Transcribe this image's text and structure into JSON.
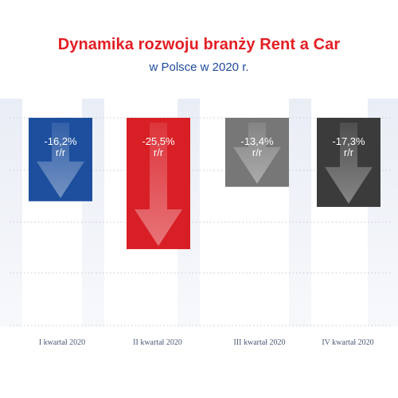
{
  "title": "Dynamika rozwoju branży Rent a Car",
  "subtitle": "w Polsce w 2020 r.",
  "colors": {
    "title": "#e31e24",
    "subtitle": "#1e4a9c",
    "stripe": "#eef1f7",
    "gridline": "#c2cad8"
  },
  "chart_data": {
    "type": "bar",
    "title": "Dynamika rozwoju branży Rent a Car",
    "subtitle": "w Polsce w 2020 r.",
    "categories": [
      "I kwartał 2020",
      "II kwartał 2020",
      "III kwartał 2020",
      "IV kwartał 2020"
    ],
    "values": [
      -16.2,
      -25.5,
      -13.4,
      -17.3
    ],
    "value_labels": [
      "-16,2%",
      "-25,5%",
      "-13,4%",
      "-17,3%"
    ],
    "unit_label": "r/r",
    "colors": [
      "#1d4f9e",
      "#d91f26",
      "#777777",
      "#3b3b3b"
    ],
    "icon": "arrow-down-icon",
    "ylim": [
      -35,
      0
    ],
    "grid": true,
    "legend": "none"
  }
}
